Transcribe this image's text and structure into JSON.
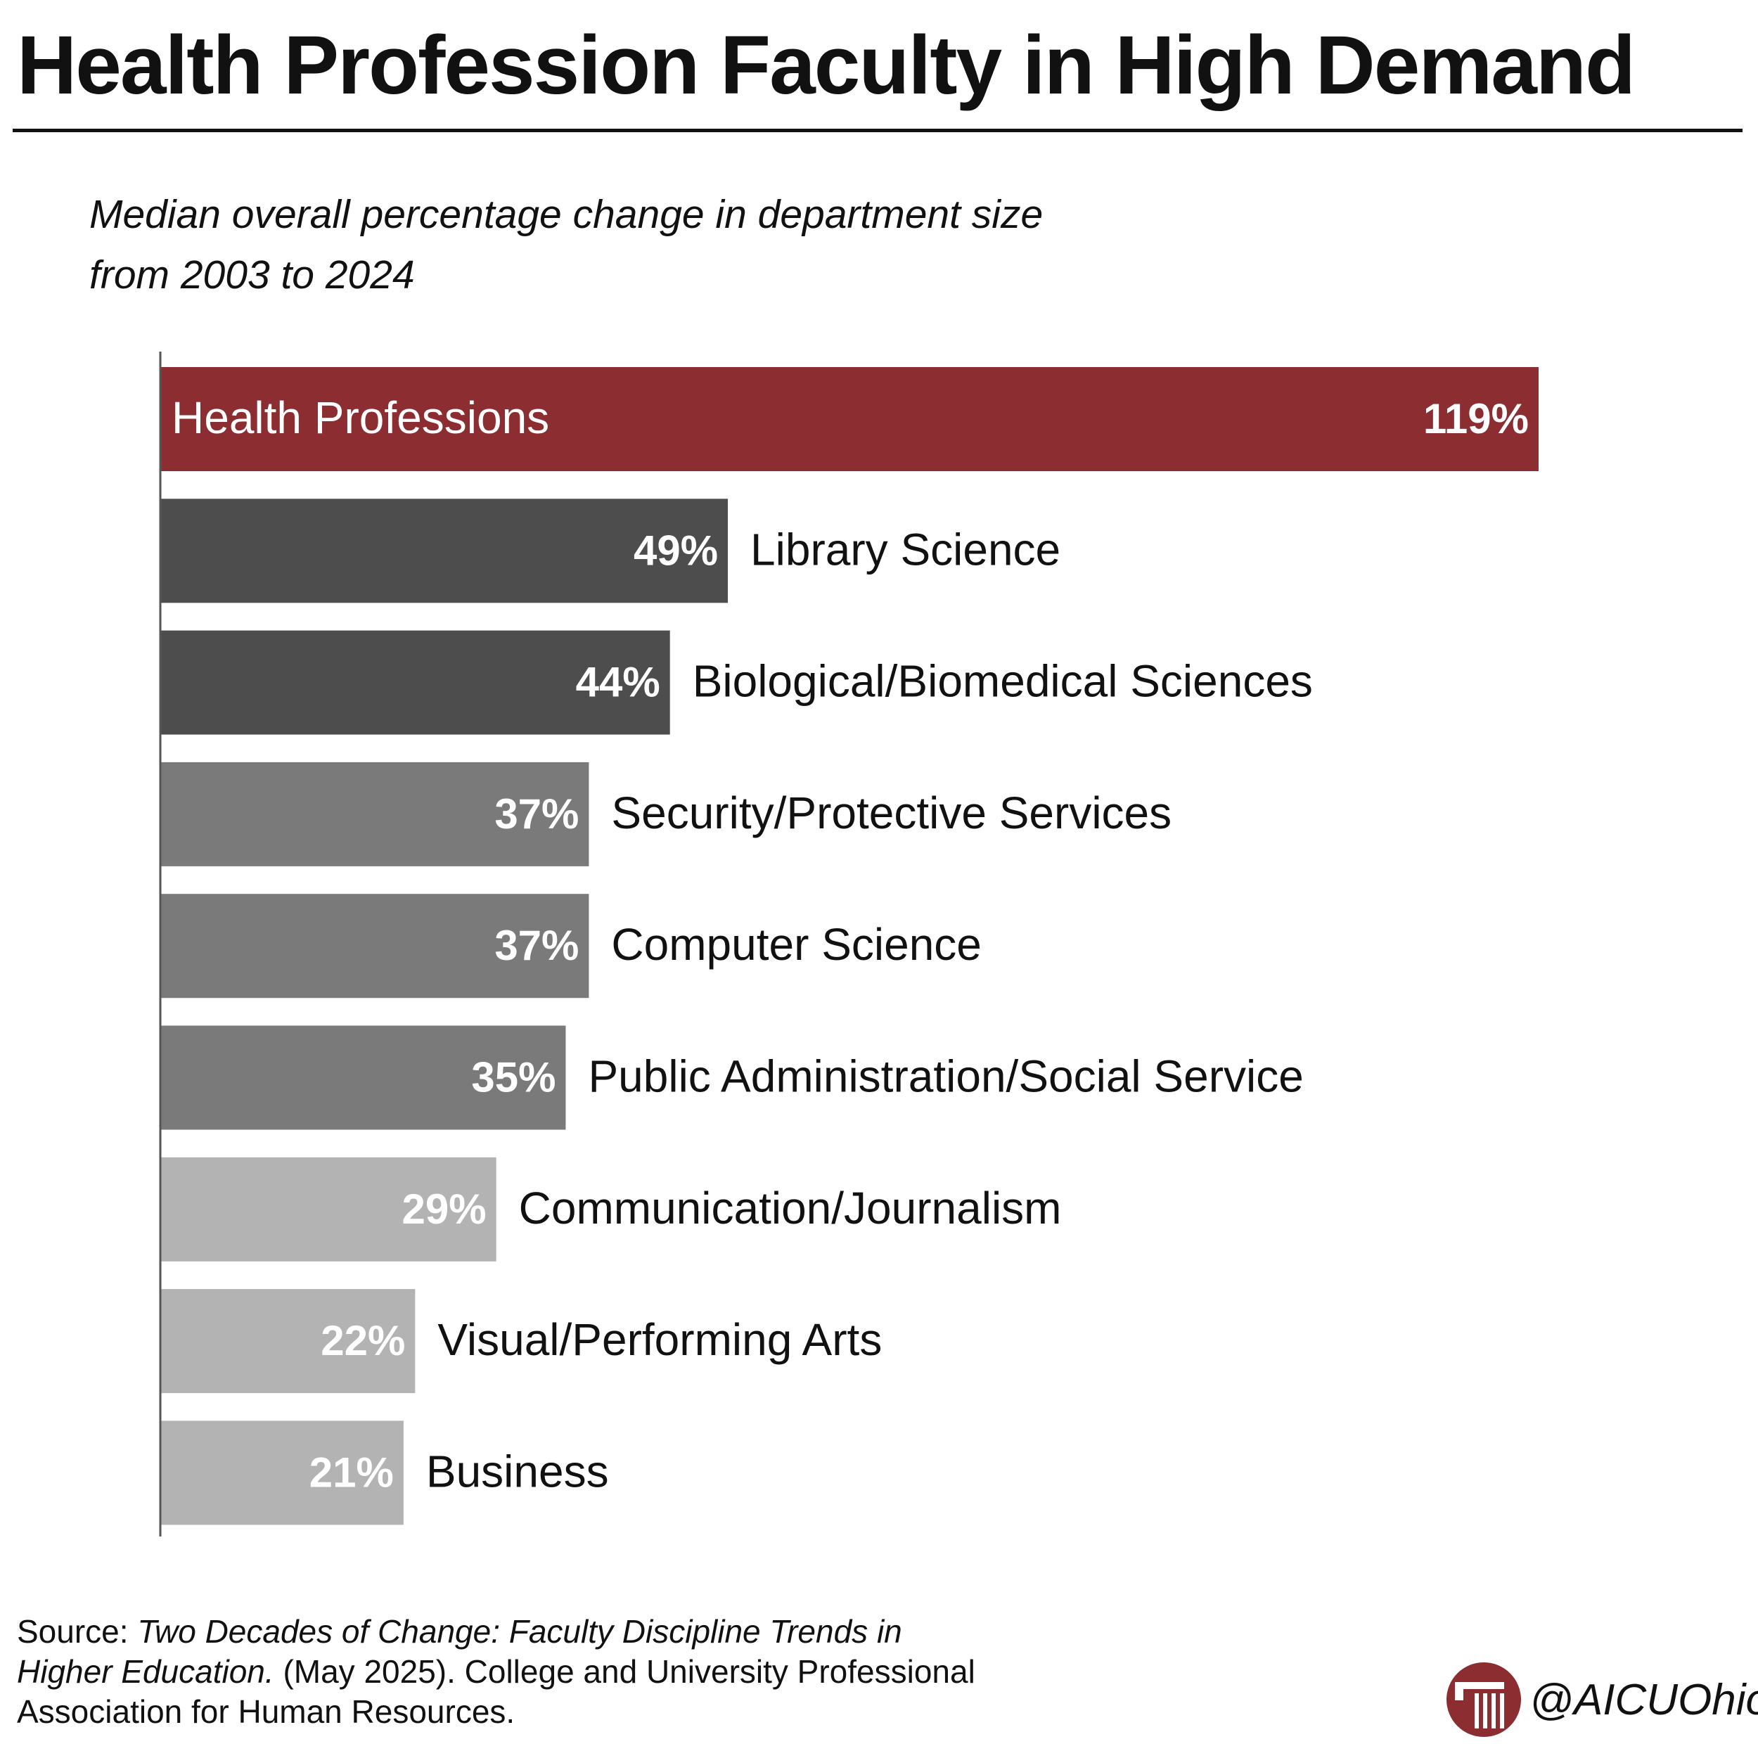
{
  "title": "Health Profession Faculty in High Demand",
  "subtitle": "Median overall percentage change in department size from 2003 to 2024",
  "source": {
    "prefix": "Source: ",
    "title": "Two Decades of Change: Faculty Discipline Trends in Higher Education.",
    "rest": " (May 2025). College and University Professional Association for Human Resources."
  },
  "handle": "@AICUOhio",
  "logo_icon": "aicuohio-column-logo-icon",
  "colors": {
    "highlight": "#8b2d31",
    "dark": "#4d4d4d",
    "medium": "#7a7a7a",
    "light": "#b3b3b3",
    "axis": "#555555"
  },
  "chart_data": {
    "type": "bar",
    "orientation": "horizontal",
    "title": "Health Profession Faculty in High Demand",
    "subtitle": "Median overall percentage change in department size from 2003 to 2024",
    "categories": [
      "Health Professions",
      "Library Science",
      "Biological/Biomedical Sciences",
      "Security/Protective Services",
      "Computer Science",
      "Public Administration/Social Service",
      "Communication/Journalism",
      "Visual/Performing Arts",
      "Business"
    ],
    "values": [
      119,
      49,
      44,
      37,
      37,
      35,
      29,
      22,
      21
    ],
    "value_labels": [
      "119%",
      "49%",
      "44%",
      "37%",
      "37%",
      "35%",
      "29%",
      "22%",
      "21%"
    ],
    "bar_colors": [
      "#8b2d31",
      "#4d4d4d",
      "#4d4d4d",
      "#7a7a7a",
      "#7a7a7a",
      "#7a7a7a",
      "#b3b3b3",
      "#b3b3b3",
      "#b3b3b3"
    ],
    "unit": "%",
    "xlim": [
      0,
      119
    ],
    "grid": false,
    "legend": "none"
  }
}
